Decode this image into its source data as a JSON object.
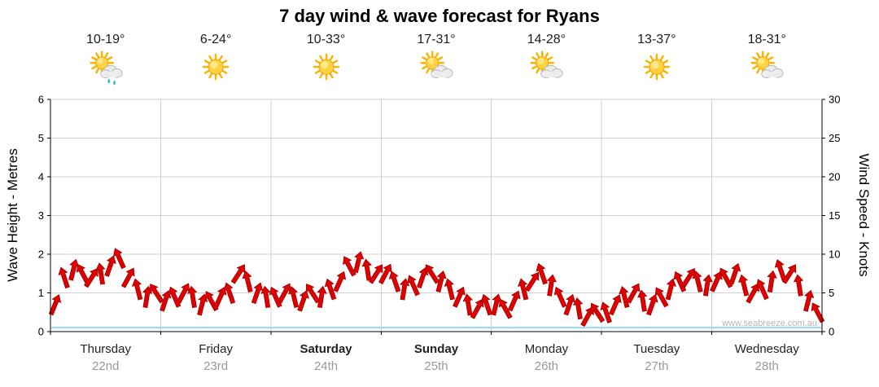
{
  "title": "7 day wind & wave forecast for Ryans",
  "watermark": "www.seabreeze.com.au",
  "axes": {
    "left": {
      "label": "Wave Height - Metres",
      "ticks": [
        0,
        1,
        2,
        3,
        4,
        5,
        6
      ],
      "range": [
        0,
        6
      ]
    },
    "right": {
      "label": "Wind Speed - Knots",
      "ticks": [
        0,
        5,
        10,
        15,
        20,
        25,
        30
      ],
      "range": [
        0,
        30
      ]
    }
  },
  "days": [
    {
      "name": "Thursday",
      "date": "22nd",
      "temp": "10-19°",
      "icon": "sun-cloud-rain",
      "bold": false
    },
    {
      "name": "Friday",
      "date": "23rd",
      "temp": "6-24°",
      "icon": "sun",
      "bold": false
    },
    {
      "name": "Saturday",
      "date": "24th",
      "temp": "10-33°",
      "icon": "sun",
      "bold": true
    },
    {
      "name": "Sunday",
      "date": "25th",
      "temp": "17-31°",
      "icon": "sun-cloud",
      "bold": true
    },
    {
      "name": "Monday",
      "date": "26th",
      "temp": "14-28°",
      "icon": "sun-cloud",
      "bold": false
    },
    {
      "name": "Tuesday",
      "date": "27th",
      "temp": "13-37°",
      "icon": "sun",
      "bold": false
    },
    {
      "name": "Wednesday",
      "date": "28th",
      "temp": "18-31°",
      "icon": "sun-cloud",
      "bold": false
    }
  ],
  "colors": {
    "wind": "#e00000",
    "windEdge": "#9c0000",
    "wave": "#8fd8ea",
    "grid": "#d0d0d0",
    "axis": "#000000"
  },
  "chart_data": {
    "type": "line",
    "title": "7 day wind & wave forecast for Ryans",
    "categories": [
      "Thursday 22nd",
      "Friday 23rd",
      "Saturday 24th",
      "Sunday 25th",
      "Monday 26th",
      "Tuesday 27th",
      "Wednesday 28th"
    ],
    "y_axis_left": {
      "label": "Wave Height - Metres",
      "range": [
        0,
        6
      ],
      "ticks": [
        0,
        1,
        2,
        3,
        4,
        5,
        6
      ]
    },
    "y_axis_right": {
      "label": "Wind Speed - Knots",
      "range": [
        0,
        30
      ],
      "ticks": [
        0,
        5,
        10,
        15,
        20,
        25,
        30
      ]
    },
    "grid": true,
    "legend": "none",
    "series": [
      {
        "name": "Wind Speed",
        "units": "knots",
        "color": "#e00000",
        "style": "wind-barbs",
        "samples_per_day": 12,
        "values": [
          3.5,
          7,
          8,
          7.5,
          7,
          7.5,
          8.5,
          9.5,
          7,
          5.5,
          4.5,
          5,
          4,
          4.5,
          5,
          4.5,
          3.5,
          4,
          4.5,
          5,
          7.5,
          6.5,
          5,
          4.5,
          4.5,
          5,
          4.5,
          4,
          5,
          4.5,
          5.5,
          6.5,
          8.5,
          9,
          8,
          7.5,
          7.5,
          6.5,
          5.5,
          6,
          7,
          7.5,
          6.5,
          5.5,
          4.5,
          3.5,
          3,
          3.5,
          3.5,
          3,
          4,
          5.5,
          6.5,
          7.5,
          6,
          4.5,
          3.5,
          3,
          2,
          2.5,
          2.5,
          3.5,
          4.5,
          5,
          4,
          3.5,
          4.5,
          5.5,
          6.5,
          7,
          6.5,
          6,
          6.5,
          7,
          7.5,
          6,
          5,
          5.5,
          6.5,
          8,
          7.5,
          6,
          4,
          2.5
        ]
      },
      {
        "name": "Wave Height",
        "units": "metres",
        "color": "#8fd8ea",
        "style": "line",
        "constant_value": 0.1
      }
    ],
    "wind_directions_deg": [
      22,
      -18,
      14,
      -28,
      33,
      -9,
      19,
      -24,
      29,
      -14,
      9,
      -33,
      18,
      -23,
      28,
      -9,
      14,
      -29,
      24,
      -19,
      33,
      -14,
      19,
      -9,
      -24,
      29,
      -14,
      19,
      -33,
      9,
      -19,
      24,
      -28,
      14,
      -9,
      33,
      28,
      -19,
      9,
      -24,
      19,
      -33,
      14,
      -14,
      24,
      -9,
      29,
      -19,
      14,
      -29,
      24,
      -14,
      33,
      -19,
      9,
      -24,
      19,
      -9,
      29,
      -33,
      -19,
      24,
      -14,
      29,
      -9,
      19,
      -29,
      14,
      -24,
      33,
      -14,
      9,
      24,
      -29,
      19,
      -14,
      29,
      -24,
      9,
      -19,
      33,
      -9,
      14,
      -28
    ]
  }
}
